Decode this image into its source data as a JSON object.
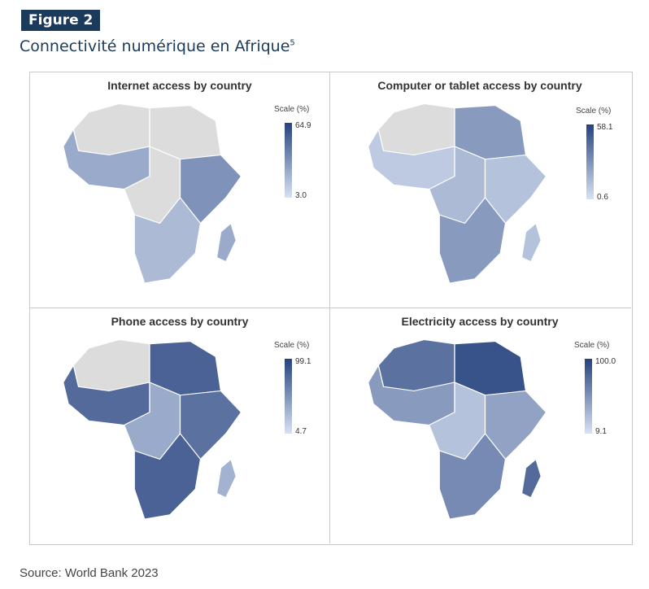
{
  "figure_tag": "Figure 2",
  "figure_title": "Connectivité numérique en Afrique",
  "figure_title_sup": "5",
  "source": "Source: World Bank 2023",
  "colors": {
    "dark": "#26427e",
    "light": "#d8e2f3",
    "nodata": "#dcdcdc",
    "tag_bg": "#1b3a5c"
  },
  "panels": [
    {
      "title": "Internet access by country",
      "scale_label": "Scale (%)",
      "max": "64.9",
      "min": "3.0",
      "shades": {
        "nw": 0.05,
        "ne": 0.05,
        "w": 0.35,
        "c": 0.05,
        "e": 0.5,
        "s": 0.25,
        "mad": 0.35
      }
    },
    {
      "title": "Computer or tablet access by country",
      "scale_label": "Scale (%)",
      "max": "58.1",
      "min": "0.6",
      "shades": {
        "nw": 0.05,
        "ne": 0.45,
        "w": 0.15,
        "c": 0.25,
        "e": 0.2,
        "s": 0.45,
        "mad": 0.2
      }
    },
    {
      "title": "Phone access by country",
      "scale_label": "Scale (%)",
      "max": "99.1",
      "min": "4.7",
      "shades": {
        "nw": 0.05,
        "ne": 0.8,
        "w": 0.75,
        "c": 0.35,
        "e": 0.7,
        "s": 0.8,
        "mad": 0.3
      }
    },
    {
      "title": "Electricity access by country",
      "scale_label": "Scale (%)",
      "max": "100.0",
      "min": "9.1",
      "shades": {
        "nw": 0.7,
        "ne": 0.9,
        "w": 0.45,
        "c": 0.2,
        "e": 0.4,
        "s": 0.55,
        "mad": 0.75
      }
    }
  ]
}
